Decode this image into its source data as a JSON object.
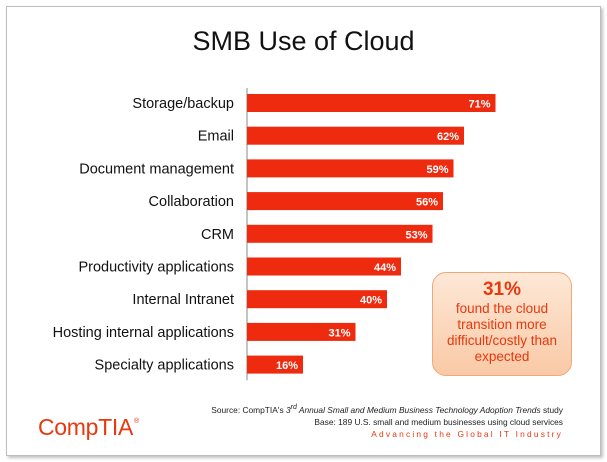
{
  "title": "SMB Use of Cloud",
  "chart_data": {
    "type": "bar",
    "orientation": "horizontal",
    "title": "SMB Use of Cloud",
    "categories": [
      "Storage/backup",
      "Email",
      "Document management",
      "Collaboration",
      "CRM",
      "Productivity applications",
      "Internal Intranet",
      "Hosting internal applications",
      "Specialty applications"
    ],
    "values": [
      71,
      62,
      59,
      56,
      53,
      44,
      40,
      31,
      16
    ],
    "value_labels": [
      "71%",
      "62%",
      "59%",
      "56%",
      "53%",
      "44%",
      "40%",
      "31%",
      "16%"
    ],
    "xlim": [
      0,
      100
    ],
    "grid": false,
    "bar_color": "#ee2a0f"
  },
  "callout": {
    "value": "31%",
    "text": "found the cloud transition more difficult/costly than expected"
  },
  "source": {
    "prefix": "Source: CompTIA's ",
    "ordinal": "3",
    "ordinal_suffix": "rd",
    "study": " Annual Small and Medium Business Technology Adoption Trends",
    "suffix": " study",
    "base": "Base: 189 U.S. small and medium businesses using cloud services",
    "tagline": "Advancing the Global IT Industry"
  },
  "logo": {
    "text": "CompTIA",
    "mark": "®"
  },
  "colors": {
    "accent": "#e8380d",
    "bar": "#ee2a0f"
  }
}
